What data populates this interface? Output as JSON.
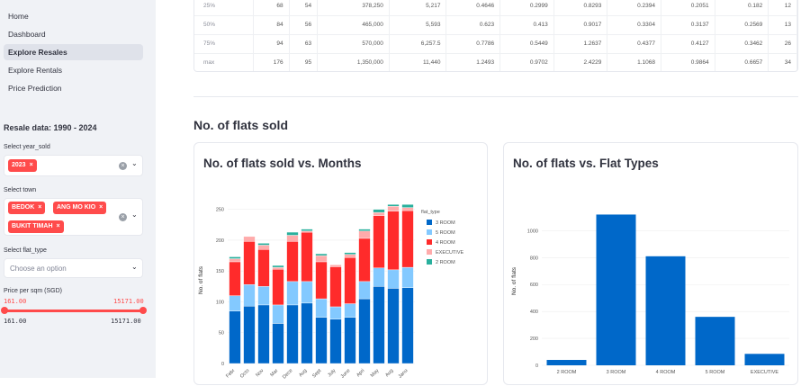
{
  "sidebar": {
    "nav": [
      "Home",
      "Dashboard",
      "Explore Resales",
      "Explore Rentals",
      "Price Prediction"
    ],
    "active_index": 2,
    "title": "Resale data: 1990 - 2024",
    "year_label": "Select year_sold",
    "year_tags": [
      "2023"
    ],
    "town_label": "Select town",
    "town_tags": [
      "BEDOK",
      "ANG MO KIO",
      "BUKIT TIMAH"
    ],
    "flat_type_label": "Select flat_type",
    "flat_type_placeholder": "Choose an option",
    "price_label": "Price per sqm (SGD)",
    "price_min": "161.00",
    "price_max": "15171.00",
    "price_range_min": "161.00",
    "price_range_max": "15171.00",
    "tag_close": "×",
    "clear_icon": "×",
    "chevron": "⌄"
  },
  "stats_table": {
    "rows": [
      [
        "25%",
        "68",
        "54",
        "378,250",
        "5,217",
        "0.4646",
        "0.2999",
        "0.8293",
        "0.2394",
        "0.2051",
        "0.182",
        "12"
      ],
      [
        "50%",
        "84",
        "56",
        "465,000",
        "5,593",
        "0.623",
        "0.413",
        "0.9017",
        "0.3304",
        "0.3137",
        "0.2569",
        "13"
      ],
      [
        "75%",
        "94",
        "63",
        "570,000",
        "6,257.5",
        "0.7786",
        "0.5449",
        "1.2637",
        "0.4377",
        "0.4127",
        "0.3462",
        "26"
      ],
      [
        "max",
        "176",
        "95",
        "1,350,000",
        "11,440",
        "1.2493",
        "0.9702",
        "2.4229",
        "1.1068",
        "0.9864",
        "0.6657",
        "34"
      ]
    ]
  },
  "section_title": "No. of flats sold",
  "chart_data": [
    {
      "type": "bar",
      "stacked": true,
      "title": "No. of flats sold vs. Months",
      "xlabel": "",
      "ylabel": "No. of flats",
      "legend_title": "flat_type",
      "legend_position": "top-right",
      "categories": [
        "February",
        "October",
        "November",
        "March",
        "December",
        "August",
        "September",
        "July",
        "June",
        "April",
        "May",
        "August",
        "January"
      ],
      "tick_labels": [
        "Febr",
        "Octo",
        "Nov",
        "Mar",
        "Dece",
        "Aug",
        "Sept",
        "July",
        "June",
        "Apri",
        "May",
        "Aug",
        "Janu"
      ],
      "ylim": [
        0,
        270
      ],
      "yticks": [
        0,
        50,
        100,
        150,
        200,
        250
      ],
      "series": [
        {
          "name": "3 ROOM",
          "color": "#0068c9",
          "values": [
            85,
            93,
            95,
            65,
            95,
            98,
            75,
            72,
            75,
            105,
            125,
            122,
            123
          ]
        },
        {
          "name": "5 ROOM",
          "color": "#83c9ff",
          "values": [
            25,
            35,
            30,
            30,
            38,
            35,
            30,
            20,
            22,
            28,
            30,
            30,
            33
          ]
        },
        {
          "name": "4 ROOM",
          "color": "#ff2b2b",
          "values": [
            55,
            70,
            60,
            58,
            65,
            80,
            60,
            65,
            75,
            70,
            85,
            95,
            92
          ]
        },
        {
          "name": "EXECUTIVE",
          "color": "#ffabab",
          "values": [
            5,
            8,
            7,
            3,
            10,
            2,
            10,
            3,
            5,
            12,
            5,
            8,
            5
          ]
        },
        {
          "name": "2 ROOM",
          "color": "#29b09d",
          "values": [
            3,
            0,
            3,
            3,
            5,
            3,
            3,
            0,
            3,
            3,
            5,
            3,
            5
          ]
        }
      ]
    },
    {
      "type": "bar",
      "title": "No. of flats vs. Flat Types",
      "xlabel": "",
      "ylabel": "No. of flats",
      "color": "#0068c9",
      "categories": [
        "2 ROOM",
        "3 ROOM",
        "4 ROOM",
        "5 ROOM",
        "EXECUTIVE"
      ],
      "values": [
        40,
        1120,
        810,
        360,
        85
      ],
      "ylim": [
        0,
        1250
      ],
      "yticks": [
        0,
        200,
        400,
        600,
        800,
        1000
      ]
    }
  ]
}
